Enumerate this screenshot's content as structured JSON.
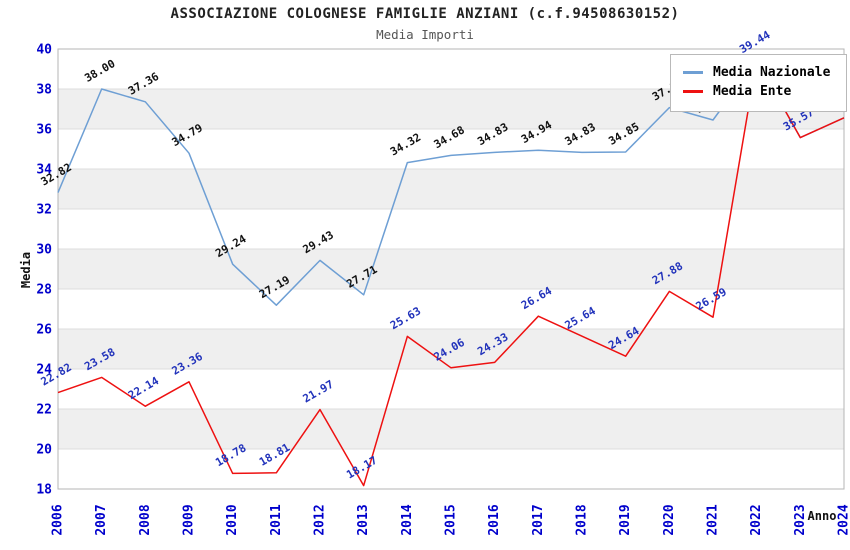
{
  "header": {
    "title": "ASSOCIAZIONE COLOGNESE FAMIGLIE ANZIANI (c.f.94508630152)",
    "subtitle": "Media Importi"
  },
  "legend": {
    "items": [
      {
        "label": "Media Nazionale",
        "color": "#6e9fd4"
      },
      {
        "label": "Media Ente",
        "color": "#ee1111"
      }
    ]
  },
  "axes": {
    "y_title": "Media",
    "x_title": "Anno",
    "y_ticks": [
      40,
      38,
      36,
      34,
      32,
      30,
      28,
      26,
      24,
      22,
      20,
      18
    ],
    "tick_color": "#0000cc"
  },
  "colors": {
    "band_gray": "#efefef",
    "gridline": "#dcdcdc",
    "plot_border": "#b5b5b5",
    "nazionale_line": "#6e9fd4",
    "ente_line": "#ee1111",
    "nazionale_label": "#111111",
    "ente_label": "#2233bb"
  },
  "chart_data": {
    "type": "line",
    "title": "ASSOCIAZIONE COLOGNESE FAMIGLIE ANZIANI (c.f.94508630152)",
    "subtitle": "Media Importi",
    "xlabel": "Anno",
    "ylabel": "Media",
    "ylim": [
      18,
      40
    ],
    "grid": true,
    "legend_position": "top-right",
    "categories": [
      "2006",
      "2007",
      "2008",
      "2009",
      "2010",
      "2011",
      "2012",
      "2013",
      "2014",
      "2015",
      "2016",
      "2017",
      "2018",
      "2019",
      "2020",
      "2021",
      "2022",
      "2023",
      "2024"
    ],
    "series": [
      {
        "name": "Media Nazionale",
        "color": "#6e9fd4",
        "label_color": "#111111",
        "values": [
          32.82,
          38.0,
          37.36,
          34.79,
          29.24,
          27.19,
          29.43,
          27.71,
          34.32,
          34.68,
          34.83,
          34.94,
          34.83,
          34.85,
          37.07,
          36.45,
          39.44,
          35.57,
          36.56
        ],
        "labels": [
          "32.82",
          "38.00",
          "37.36",
          "34.79",
          "29.24",
          "27.19",
          "29.43",
          "27.71",
          "34.32",
          "34.68",
          "34.83",
          "34.94",
          "34.83",
          "34.85",
          "37.07",
          "36.45",
          null,
          null,
          null
        ]
      },
      {
        "name": "Media Ente",
        "color": "#ee1111",
        "label_color": "#2233bb",
        "values": [
          22.82,
          23.58,
          22.14,
          23.36,
          18.78,
          18.81,
          21.97,
          18.17,
          25.63,
          24.06,
          24.33,
          26.64,
          25.64,
          24.64,
          27.88,
          26.59,
          39.44,
          35.57,
          36.56
        ],
        "labels": [
          "22.82",
          "23.58",
          "22.14",
          "23.36",
          "18.78",
          "18.81",
          "21.97",
          "18.17",
          "25.63",
          "24.06",
          "24.33",
          "26.64",
          "25.64",
          "24.64",
          "27.88",
          "26.59",
          "39.44",
          "35.57",
          "36.56"
        ]
      }
    ]
  }
}
